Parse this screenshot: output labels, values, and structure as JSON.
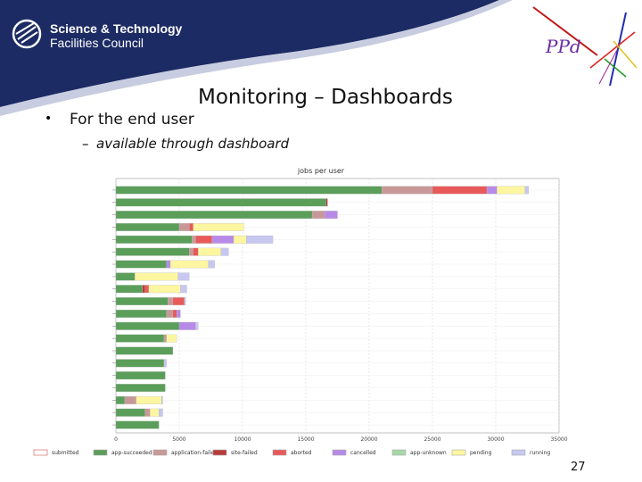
{
  "header": {
    "org_line1": "Science & Technology",
    "org_line2": "Facilities Council",
    "logo_text": "PPd"
  },
  "slide": {
    "title": "Monitoring – Dashboards",
    "bullet1": "For the end user",
    "sub1": "available through dashboard",
    "page_number": "27"
  },
  "colors": {
    "header_navy": "#1c2b64",
    "submitted": "#ffffff",
    "app-succeeded": "#5a9e5a",
    "application-failed": "#c89898",
    "site-failed": "#b83a3a",
    "aborted": "#e85a5a",
    "cancelled": "#b88ae8",
    "app-unknown": "#a6d8a6",
    "pending": "#fdf6a0",
    "running": "#c6c8f0"
  },
  "chart_data": {
    "type": "bar",
    "orientation": "horizontal",
    "stacked": true,
    "title": "jobs per user",
    "xlim": [
      0,
      35000
    ],
    "xticks": [
      0,
      5000,
      10000,
      15000,
      20000,
      25000,
      30000,
      35000
    ],
    "xtick_labels": [
      "0",
      "5000",
      "10000",
      "15000",
      "20000",
      "25000",
      "30000",
      "35000"
    ],
    "grid": true,
    "legend_position": "bottom",
    "series_names": [
      "submitted",
      "app-succeeded",
      "application-failed",
      "site-failed",
      "aborted",
      "cancelled",
      "app-unknown",
      "pending",
      "running"
    ],
    "rows": [
      {
        "app-succeeded": 21000,
        "application-failed": 4000,
        "site-failed": 0,
        "aborted": 4300,
        "cancelled": 800,
        "app-unknown": 0,
        "pending": 2200,
        "running": 300
      },
      {
        "app-succeeded": 16600,
        "application-failed": 0,
        "site-failed": 120,
        "aborted": 0,
        "cancelled": 0,
        "app-unknown": 0,
        "pending": 0,
        "running": 0
      },
      {
        "app-succeeded": 15500,
        "application-failed": 1000,
        "site-failed": 0,
        "aborted": 0,
        "cancelled": 1000,
        "app-unknown": 0,
        "pending": 0,
        "running": 0
      },
      {
        "app-succeeded": 5000,
        "application-failed": 800,
        "site-failed": 0,
        "aborted": 300,
        "cancelled": 0,
        "app-unknown": 0,
        "pending": 4000,
        "running": 0
      },
      {
        "app-succeeded": 6000,
        "application-failed": 300,
        "site-failed": 0,
        "aborted": 1300,
        "cancelled": 1700,
        "app-unknown": 0,
        "pending": 1000,
        "running": 2100
      },
      {
        "app-succeeded": 5800,
        "application-failed": 300,
        "site-failed": 0,
        "aborted": 400,
        "cancelled": 0,
        "app-unknown": 0,
        "pending": 1800,
        "running": 600
      },
      {
        "app-succeeded": 4000,
        "application-failed": 0,
        "site-failed": 0,
        "aborted": 0,
        "cancelled": 300,
        "app-unknown": 0,
        "pending": 3000,
        "running": 500
      },
      {
        "app-succeeded": 1500,
        "application-failed": 0,
        "site-failed": 0,
        "aborted": 0,
        "cancelled": 0,
        "app-unknown": 0,
        "pending": 3400,
        "running": 900
      },
      {
        "app-succeeded": 2100,
        "application-failed": 0,
        "site-failed": 200,
        "aborted": 300,
        "cancelled": 0,
        "app-unknown": 0,
        "pending": 2500,
        "running": 500
      },
      {
        "app-succeeded": 4100,
        "application-failed": 400,
        "site-failed": 0,
        "aborted": 900,
        "cancelled": 0,
        "app-unknown": 0,
        "pending": 0,
        "running": 100
      },
      {
        "app-succeeded": 4000,
        "application-failed": 500,
        "site-failed": 0,
        "aborted": 300,
        "cancelled": 300,
        "app-unknown": 0,
        "pending": 0,
        "running": 0
      },
      {
        "app-succeeded": 5000,
        "application-failed": 0,
        "site-failed": 0,
        "aborted": 0,
        "cancelled": 1300,
        "app-unknown": 0,
        "pending": 0,
        "running": 200
      },
      {
        "app-succeeded": 3800,
        "application-failed": 200,
        "site-failed": 0,
        "aborted": 0,
        "cancelled": 0,
        "app-unknown": 0,
        "pending": 800,
        "running": 0
      },
      {
        "app-succeeded": 4500,
        "application-failed": 0,
        "site-failed": 0,
        "aborted": 0,
        "cancelled": 0,
        "app-unknown": 0,
        "pending": 0,
        "running": 0
      },
      {
        "app-succeeded": 3800,
        "application-failed": 0,
        "site-failed": 0,
        "aborted": 0,
        "cancelled": 0,
        "app-unknown": 0,
        "pending": 0,
        "running": 200
      },
      {
        "app-succeeded": 3900,
        "application-failed": 0,
        "site-failed": 0,
        "aborted": 0,
        "cancelled": 0,
        "app-unknown": 0,
        "pending": 0,
        "running": 0
      },
      {
        "app-succeeded": 3900,
        "application-failed": 0,
        "site-failed": 0,
        "aborted": 0,
        "cancelled": 0,
        "app-unknown": 0,
        "pending": 0,
        "running": 0
      },
      {
        "app-succeeded": 700,
        "application-failed": 900,
        "site-failed": 0,
        "aborted": 0,
        "cancelled": 0,
        "app-unknown": 0,
        "pending": 2000,
        "running": 100
      },
      {
        "app-succeeded": 2300,
        "application-failed": 400,
        "site-failed": 0,
        "aborted": 0,
        "cancelled": 0,
        "app-unknown": 0,
        "pending": 700,
        "running": 300
      },
      {
        "app-succeeded": 3400,
        "application-failed": 0,
        "site-failed": 0,
        "aborted": 0,
        "cancelled": 0,
        "app-unknown": 0,
        "pending": 0,
        "running": 0
      }
    ]
  }
}
